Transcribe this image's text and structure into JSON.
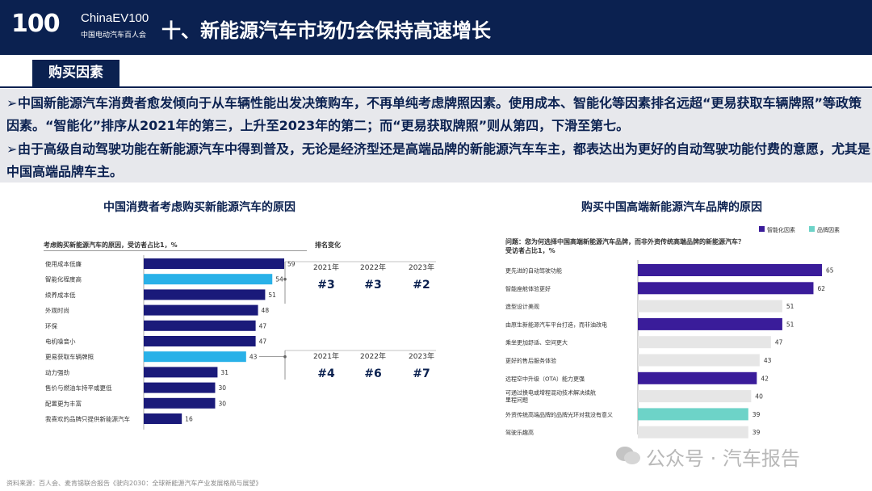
{
  "header": {
    "logo_number": "100",
    "logo_brand": "ChinaEV100",
    "logo_sub": "中国电动汽车百人会",
    "title": "十、新能源汽车市场仍会保持高速增长"
  },
  "section": {
    "label": "购买因素"
  },
  "bullets": [
    {
      "arrow": "➢",
      "text": "中国新能源汽车消费者愈发倾向于从车辆性能出发决策购车，不再单纯考虑牌照因素。使用成本、智能化等因素排名远超“更易获取车辆牌照”等政策因素。“智能化”排序从2021年的第三，上升至2023年的第二；而“更易获取牌照”则从第四，下滑至第七。"
    },
    {
      "arrow": "➢",
      "text": "由于高级自动驾驶功能在新能源汽车中得到普及，无论是经济型还是高端品牌的新能源汽车车主，都表达出为更好的自动驾驶功能付费的意愿，尤其是中国高端品牌车主。"
    }
  ],
  "colors": {
    "navy": "#0b2150",
    "dark_bar": "#1a1a7a",
    "light_bar": "#29b1e8",
    "purple": "#3a1c9a",
    "teal": "#6dd3c8",
    "gray_bar": "#e6e6e6"
  },
  "chart_data": [
    {
      "type": "bar",
      "orientation": "horizontal",
      "title": "中国消费者考虑购买新能源汽车的原因",
      "subtitle": "考虑购买新能源汽车的原因，受访者占比1，%",
      "rank_header": "排名变化",
      "categories": [
        "使用成本低廉",
        "智能化程度高",
        "续养成本低",
        "外观时尚",
        "环保",
        "电机噪音小",
        "更易获取车辆牌照",
        "动力强劲",
        "售价与燃油车持平或更低",
        "配置更为丰富",
        "我喜欢的品牌只提供新能源汽车"
      ],
      "values": [
        59,
        54,
        51,
        48,
        47,
        47,
        43,
        31,
        30,
        30,
        16
      ],
      "highlight": [
        "智能化程度高",
        "更易获取车辆牌照"
      ],
      "rank_changes": [
        {
          "factor": "智能化程度高",
          "years": [
            "2021年",
            "2022年",
            "2023年"
          ],
          "ranks": [
            "#3",
            "#3",
            "#2"
          ]
        },
        {
          "factor": "更易获取车辆牌照",
          "years": [
            "2021年",
            "2022年",
            "2023年"
          ],
          "ranks": [
            "#4",
            "#6",
            "#7"
          ]
        }
      ]
    },
    {
      "type": "bar",
      "orientation": "horizontal",
      "title": "购买中国高端新能源汽车品牌的原因",
      "subtitle": "问题：您为何选择中国高端新能源汽车品牌，而非外资传统高端品牌的新能源汽车？",
      "subtitle2": "受访者占比1，%",
      "legend": [
        {
          "name": "智能化因素",
          "color": "#3a1c9a"
        },
        {
          "name": "品牌因素",
          "color": "#6dd3c8"
        }
      ],
      "categories": [
        "更先进的自动驾驶功能",
        "智能座舱体验更好",
        "造型设计美观",
        "由原生新能源汽车平台打造，而非油改电",
        "乘坐更加舒适、空间更大",
        "更好的售后服务体验",
        "远程空中升级（OTA）能力更强",
        "可通过换电或增程混动技术解决续航里程问题",
        "外资传统高端品牌的品牌光环对我没有意义",
        "驾驶乐趣高"
      ],
      "label_lines": [
        [
          "更先进的自动驾驶功能"
        ],
        [
          "智能座舱体验更好"
        ],
        [
          "造型设计美观"
        ],
        [
          "由原生新能源汽车平台打造，而非油改电"
        ],
        [
          "乘坐更加舒适、空间更大"
        ],
        [
          "更好的售后服务体验"
        ],
        [
          "远程空中升级（OTA）能力更强"
        ],
        [
          "可通过换电或增程混动技术解决续航",
          "里程问题"
        ],
        [
          "外资传统高端品牌的品牌光环对我没有意义"
        ],
        [
          "驾驶乐趣高"
        ]
      ],
      "values": [
        65,
        62,
        51,
        51,
        47,
        43,
        42,
        40,
        39,
        39
      ],
      "groups": [
        "智能化因素",
        "智能化因素",
        "other",
        "智能化因素",
        "other",
        "other",
        "智能化因素",
        "other",
        "品牌因素",
        "other"
      ]
    }
  ],
  "footer": {
    "source": "资料来源：百人会、麦肯锡联合报告《驶向2030：全球新能源汽车产业发展格局与展望》",
    "watermark": "公众号 · 汽车报告"
  }
}
